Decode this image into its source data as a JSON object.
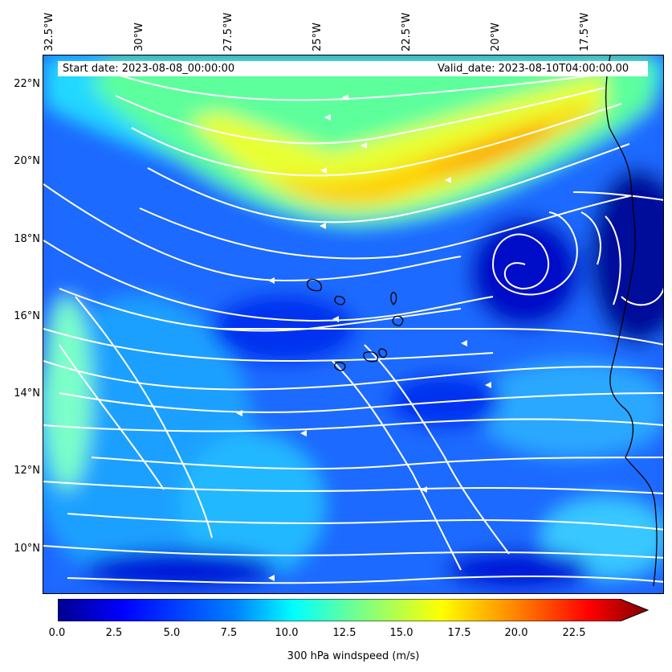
{
  "map": {
    "start_date": "Start date: 2023-08-08_00:00:00",
    "valid_date": "Valid_date: 2023-08-10T04:00:00.00",
    "lon_labels": [
      "32.5°W",
      "30°W",
      "27.5°W",
      "25°W",
      "22.5°W",
      "20°W",
      "17.5°W"
    ],
    "lat_labels": [
      "22°N",
      "20°N",
      "18°N",
      "16°N",
      "14°N",
      "12°N",
      "10°N"
    ]
  },
  "colorbar": {
    "label": "300 hPa windspeed (m/s)",
    "ticks": [
      "0.0",
      "2.5",
      "5.0",
      "7.5",
      "10.0",
      "12.5",
      "15.0",
      "17.5",
      "20.0",
      "22.5"
    ],
    "colors": [
      "#00008f",
      "#0000ff",
      "#0080ff",
      "#00ffff",
      "#80ff80",
      "#ffff00",
      "#ff8000",
      "#ff0000",
      "#800000"
    ]
  },
  "field": {
    "background": "#1a5cff",
    "jet": "#ffff40",
    "jet_core": "#ff8a00",
    "calm": "#0010d0"
  }
}
